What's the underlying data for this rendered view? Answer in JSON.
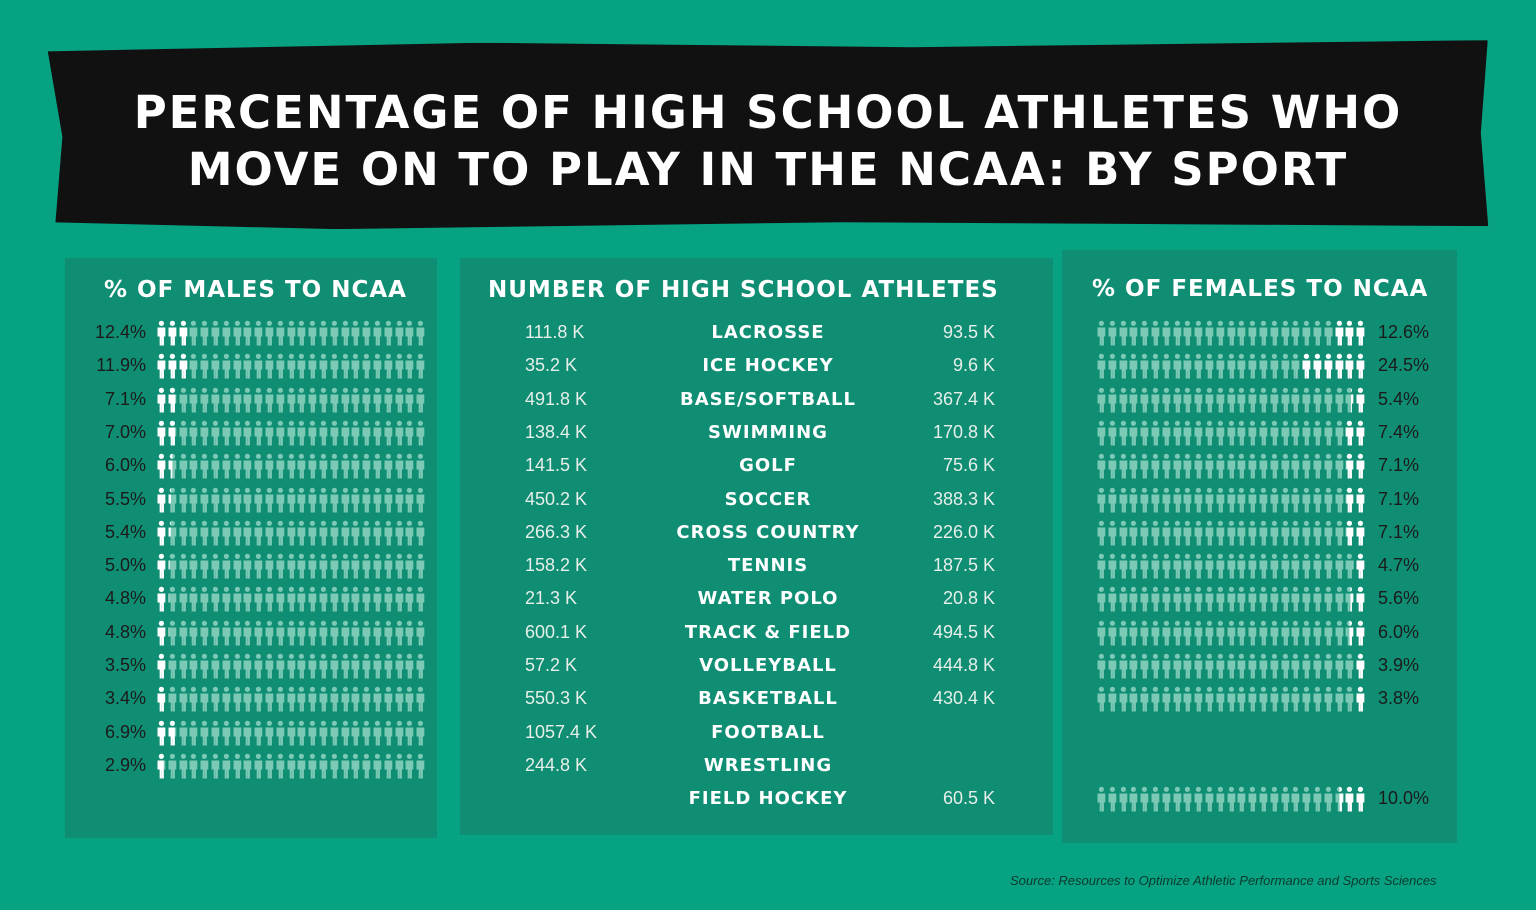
{
  "title": {
    "line1": "PERCENTAGE OF HIGH SCHOOL ATHLETES WHO",
    "line2": "MOVE ON TO PLAY IN THE NCAA: BY SPORT"
  },
  "headers": {
    "males": "% OF MALES TO NCAA",
    "athletes": "NUMBER OF HIGH SCHOOL ATHLETES",
    "females": "% OF FEMALES TO NCAA"
  },
  "source": "Source: Resources to Optimize Athletic Performance and Sports Sciences",
  "colors": {
    "background": "#07a282",
    "panel": "#0f8e73",
    "icon_filled": "#ffffff",
    "icon_empty": "#7cc9b6"
  },
  "chart_data": {
    "type": "pictogram-table",
    "icon_unit_percent": 4,
    "icons_per_row": 25,
    "sports": [
      "LACROSSE",
      "ICE HOCKEY",
      "BASE/SOFTBALL",
      "SWIMMING",
      "GOLF",
      "SOCCER",
      "CROSS COUNTRY",
      "TENNIS",
      "WATER POLO",
      "TRACK & FIELD",
      "VOLLEYBALL",
      "BASKETBALL",
      "FOOTBALL",
      "WRESTLING",
      "FIELD HOCKEY"
    ],
    "male_pct": [
      12.4,
      11.9,
      7.1,
      7.0,
      6.0,
      5.5,
      5.4,
      5.0,
      4.8,
      4.8,
      3.5,
      3.4,
      6.9,
      2.9,
      null
    ],
    "male_pct_labels": [
      "12.4%",
      "11.9%",
      "7.1%",
      "7.0%",
      "6.0%",
      "5.5%",
      "5.4%",
      "5.0%",
      "4.8%",
      "4.8%",
      "3.5%",
      "3.4%",
      "6.9%",
      "2.9%",
      ""
    ],
    "male_athletes": [
      "111.8 K",
      "35.2 K",
      "491.8 K",
      "138.4 K",
      "141.5 K",
      "450.2 K",
      "266.3 K",
      "158.2 K",
      "21.3 K",
      "600.1 K",
      "57.2 K",
      "550.3 K",
      "1057.4 K",
      "244.8 K",
      ""
    ],
    "female_athletes": [
      "93.5 K",
      "9.6 K",
      "367.4 K",
      "170.8 K",
      "75.6 K",
      "388.3 K",
      "226.0 K",
      "187.5 K",
      "20.8 K",
      "494.5 K",
      "444.8 K",
      "430.4 K",
      "",
      "",
      "60.5 K"
    ],
    "female_pct": [
      12.6,
      24.5,
      5.4,
      7.4,
      7.1,
      7.1,
      7.1,
      4.7,
      5.6,
      6.0,
      3.9,
      3.8,
      null,
      null,
      10.0
    ],
    "female_pct_labels": [
      "12.6%",
      "24.5%",
      "5.4%",
      "7.4%",
      "7.1%",
      "7.1%",
      "7.1%",
      "4.7%",
      "5.6%",
      "6.0%",
      "3.9%",
      "3.8%",
      "",
      "",
      "10.0%"
    ]
  }
}
